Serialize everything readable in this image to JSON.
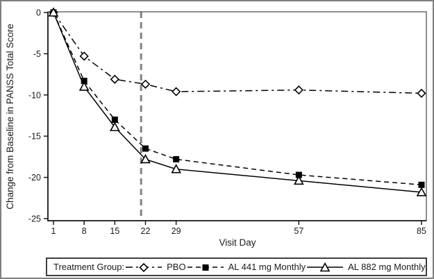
{
  "chart_data": {
    "type": "line",
    "xlabel": "Visit Day",
    "ylabel": "Change from Baseline in PANSS Total Score",
    "legend_title": "Treatment Group:",
    "legend_position": "bottom",
    "grid": false,
    "x": [
      1,
      8,
      15,
      22,
      29,
      57,
      85
    ],
    "x_tick_labels": [
      "1",
      "8",
      "15",
      "22",
      "29",
      "57",
      "85"
    ],
    "y_ticks": [
      0,
      -5,
      -10,
      -15,
      -20,
      -25
    ],
    "xlim": [
      1,
      85
    ],
    "ylim": [
      -25,
      0
    ],
    "reference_line": {
      "x": 21,
      "style": "dashed",
      "color": "#828282"
    },
    "series": [
      {
        "name": "PBO",
        "line_style": "dash-dot",
        "marker": "open-diamond",
        "color": "#000000",
        "values": [
          0,
          -5.3,
          -8.1,
          -8.7,
          -9.6,
          -9.4,
          -9.8
        ]
      },
      {
        "name": "AL 441 mg Monthly",
        "line_style": "dashed",
        "marker": "filled-square",
        "color": "#000000",
        "values": [
          0,
          -8.3,
          -13.0,
          -16.5,
          -17.8,
          -19.7,
          -20.9
        ]
      },
      {
        "name": "AL 882 mg Monthly",
        "line_style": "solid",
        "marker": "open-triangle",
        "color": "#000000",
        "values": [
          0,
          -9.0,
          -13.9,
          -17.8,
          -19.0,
          -20.4,
          -21.8
        ]
      }
    ],
    "colors": {
      "axis": "#1a1a1a",
      "frame": "#555555",
      "reference_line": "#828282",
      "border": "#808080"
    }
  }
}
